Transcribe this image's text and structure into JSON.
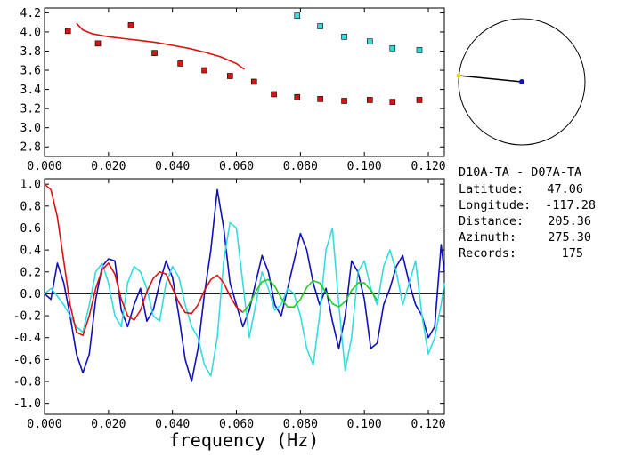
{
  "chart_data": [
    {
      "type": "scatter",
      "panel": "dispersion",
      "title": "",
      "xlabel": "",
      "ylabel": "",
      "xlim": [
        0.0,
        0.125
      ],
      "ylim": [
        2.7,
        4.25
      ],
      "x_ticks": [
        "0.000",
        "0.020",
        "0.040",
        "0.060",
        "0.080",
        "0.100",
        "0.120"
      ],
      "y_ticks": [
        "2.8",
        "3.0",
        "3.2",
        "3.4",
        "3.6",
        "3.8",
        "4.0",
        "4.2"
      ],
      "series": [
        {
          "color": "#dd1111",
          "marker": "square",
          "x": [
            0.0073,
            0.0167,
            0.027,
            0.0344,
            0.0425,
            0.05,
            0.058,
            0.0655,
            0.0717,
            0.079,
            0.0862,
            0.0937,
            0.1017,
            0.1088,
            0.1172
          ],
          "y": [
            4.01,
            3.88,
            4.07,
            3.78,
            3.67,
            3.6,
            3.54,
            3.48,
            3.35,
            3.32,
            3.3,
            3.28,
            3.29,
            3.27,
            3.29
          ]
        },
        {
          "color": "#33dddd",
          "marker": "square",
          "x": [
            0.079,
            0.0862,
            0.0937,
            0.1017,
            0.1088,
            0.1172
          ],
          "y": [
            4.17,
            4.06,
            3.95,
            3.9,
            3.83,
            3.81
          ]
        },
        {
          "color": "#dd1111",
          "marker": "line",
          "x": [
            0.01,
            0.012,
            0.015,
            0.02,
            0.025,
            0.03,
            0.035,
            0.04,
            0.045,
            0.05,
            0.055,
            0.06,
            0.0625
          ],
          "y": [
            4.09,
            4.02,
            3.98,
            3.95,
            3.93,
            3.91,
            3.89,
            3.86,
            3.83,
            3.79,
            3.74,
            3.67,
            3.61
          ]
        }
      ]
    },
    {
      "type": "line",
      "panel": "correlation",
      "title": "",
      "xlabel": "frequency (Hz)",
      "ylabel": "",
      "xlim": [
        0.0,
        0.125
      ],
      "ylim": [
        -1.1,
        1.05
      ],
      "x_ticks": [
        "0.000",
        "0.020",
        "0.040",
        "0.060",
        "0.080",
        "0.100",
        "0.120"
      ],
      "y_ticks": [
        "-1.0",
        "-0.8",
        "-0.6",
        "-0.4",
        "-0.2",
        "0.0",
        "0.2",
        "0.4",
        "0.6",
        "0.8",
        "1.0"
      ],
      "series": [
        {
          "color": "#1111bb",
          "x": [
            0.0,
            0.002,
            0.004,
            0.006,
            0.008,
            0.01,
            0.012,
            0.014,
            0.016,
            0.018,
            0.02,
            0.022,
            0.024,
            0.026,
            0.028,
            0.03,
            0.032,
            0.034,
            0.036,
            0.038,
            0.04,
            0.042,
            0.044,
            0.046,
            0.048,
            0.05,
            0.052,
            0.054,
            0.056,
            0.058,
            0.06,
            0.062,
            0.064,
            0.066,
            0.068,
            0.07,
            0.072,
            0.074,
            0.076,
            0.078,
            0.08,
            0.082,
            0.084,
            0.086,
            0.088,
            0.09,
            0.092,
            0.094,
            0.096,
            0.098,
            0.1,
            0.102,
            0.104,
            0.106,
            0.108,
            0.11,
            0.112,
            0.114,
            0.116,
            0.118,
            0.12,
            0.122,
            0.124,
            0.125
          ],
          "y": [
            0.0,
            -0.05,
            0.28,
            0.1,
            -0.2,
            -0.55,
            -0.72,
            -0.55,
            -0.05,
            0.25,
            0.32,
            0.3,
            -0.15,
            -0.3,
            -0.1,
            0.05,
            -0.25,
            -0.15,
            0.1,
            0.3,
            0.15,
            -0.2,
            -0.6,
            -0.8,
            -0.5,
            0.0,
            0.4,
            0.95,
            0.6,
            0.1,
            -0.1,
            -0.3,
            -0.15,
            0.1,
            0.35,
            0.2,
            -0.1,
            -0.2,
            0.05,
            0.3,
            0.55,
            0.4,
            0.1,
            -0.1,
            0.05,
            -0.25,
            -0.5,
            -0.2,
            0.3,
            0.2,
            -0.05,
            -0.5,
            -0.45,
            -0.1,
            0.05,
            0.25,
            0.35,
            0.1,
            -0.1,
            -0.2,
            -0.4,
            -0.3,
            0.45,
            0.2
          ]
        },
        {
          "color": "#33dddd",
          "x": [
            0.0,
            0.002,
            0.004,
            0.006,
            0.008,
            0.01,
            0.012,
            0.014,
            0.016,
            0.018,
            0.02,
            0.022,
            0.024,
            0.026,
            0.028,
            0.03,
            0.032,
            0.034,
            0.036,
            0.038,
            0.04,
            0.042,
            0.044,
            0.046,
            0.048,
            0.05,
            0.052,
            0.054,
            0.056,
            0.058,
            0.06,
            0.062,
            0.064,
            0.066,
            0.068,
            0.07,
            0.072,
            0.074,
            0.076,
            0.078,
            0.08,
            0.082,
            0.084,
            0.086,
            0.088,
            0.09,
            0.092,
            0.094,
            0.096,
            0.098,
            0.1,
            0.102,
            0.104,
            0.106,
            0.108,
            0.11,
            0.112,
            0.114,
            0.116,
            0.118,
            0.12,
            0.122,
            0.124,
            0.125
          ],
          "y": [
            0.0,
            0.05,
            -0.02,
            -0.1,
            -0.2,
            -0.3,
            -0.35,
            -0.1,
            0.2,
            0.28,
            0.1,
            -0.2,
            -0.3,
            0.1,
            0.25,
            0.2,
            0.05,
            -0.2,
            -0.25,
            0.1,
            0.25,
            0.15,
            -0.1,
            -0.3,
            -0.4,
            -0.65,
            -0.75,
            -0.4,
            0.3,
            0.65,
            0.6,
            0.1,
            -0.4,
            -0.1,
            0.2,
            0.05,
            -0.15,
            -0.1,
            0.05,
            0.0,
            -0.2,
            -0.5,
            -0.65,
            -0.2,
            0.4,
            0.6,
            -0.1,
            -0.7,
            -0.4,
            0.2,
            0.3,
            0.05,
            -0.1,
            0.25,
            0.4,
            0.2,
            -0.1,
            0.1,
            0.3,
            -0.2,
            -0.55,
            -0.4,
            -0.1,
            0.1
          ]
        },
        {
          "color": "#dd1111",
          "x": [
            0.0,
            0.002,
            0.004,
            0.006,
            0.008,
            0.01,
            0.012,
            0.014,
            0.016,
            0.018,
            0.02,
            0.022,
            0.024,
            0.026,
            0.028,
            0.03,
            0.032,
            0.034,
            0.036,
            0.038,
            0.04,
            0.042,
            0.044,
            0.046,
            0.048,
            0.05,
            0.052,
            0.054,
            0.056,
            0.058,
            0.06,
            0.062
          ],
          "y": [
            1.0,
            0.95,
            0.7,
            0.3,
            -0.1,
            -0.35,
            -0.38,
            -0.2,
            0.05,
            0.22,
            0.28,
            0.18,
            -0.05,
            -0.2,
            -0.24,
            -0.15,
            0.02,
            0.14,
            0.2,
            0.18,
            0.05,
            -0.08,
            -0.17,
            -0.18,
            -0.1,
            0.03,
            0.13,
            0.17,
            0.1,
            -0.02,
            -0.12,
            -0.17
          ]
        },
        {
          "color": "#22cc22",
          "x": [
            0.062,
            0.064,
            0.066,
            0.068,
            0.07,
            0.072,
            0.074,
            0.076,
            0.078,
            0.08,
            0.082,
            0.084,
            0.086,
            0.088,
            0.09,
            0.092,
            0.094,
            0.096,
            0.098,
            0.1,
            0.102,
            0.104
          ],
          "y": [
            -0.17,
            -0.1,
            0.02,
            0.11,
            0.13,
            0.07,
            -0.04,
            -0.12,
            -0.12,
            -0.05,
            0.06,
            0.12,
            0.1,
            0.01,
            -0.09,
            -0.12,
            -0.07,
            0.03,
            0.1,
            0.1,
            0.03,
            -0.06
          ]
        }
      ]
    }
  ],
  "polar": {
    "azimuth_deg": 275.3,
    "radius_fraction": 1.0,
    "line_color": "#000000",
    "center_color": "#1111bb",
    "end_color": "#dddd00"
  },
  "info": {
    "station_pair": "D10A-TA - D07A-TA",
    "latitude_label": "Latitude:",
    "latitude_value": "47.06",
    "longitude_label": "Longitude:",
    "longitude_value": "-117.28",
    "distance_label": "Distance:",
    "distance_value": "205.36",
    "azimuth_label": "Azimuth:",
    "azimuth_value": "275.30",
    "records_label": "Records:",
    "records_value": "175"
  }
}
